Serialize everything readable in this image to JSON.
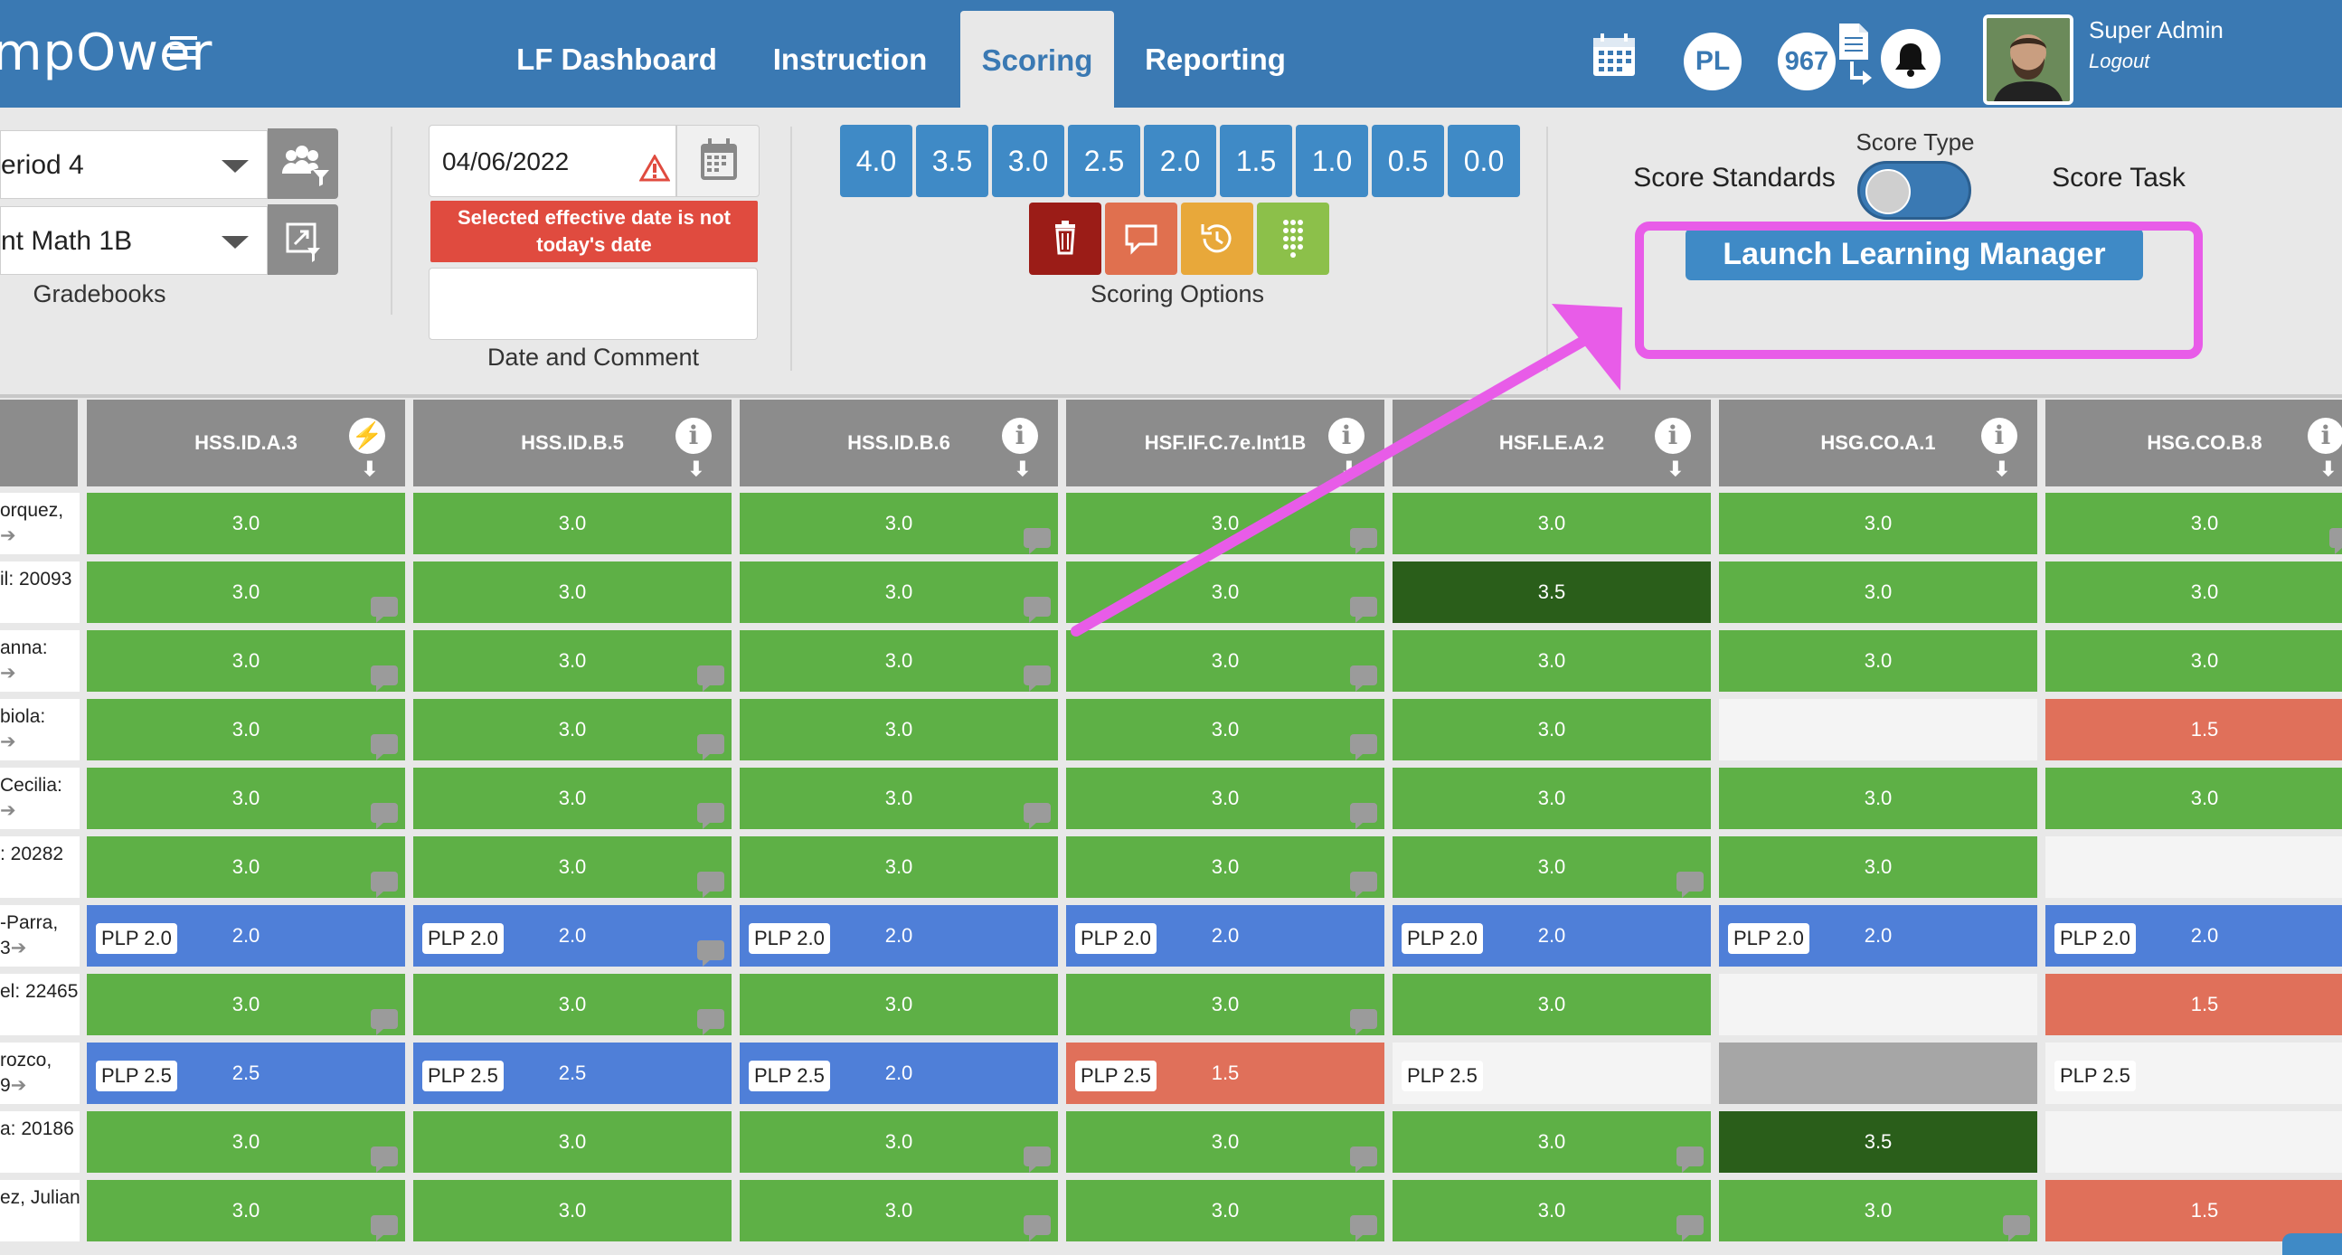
{
  "header": {
    "logo": "mpOwer",
    "nav": [
      "LF Dashboard",
      "Instruction",
      "Scoring",
      "Reporting"
    ],
    "pl_badge": "PL",
    "count_badge": "967",
    "user_name": "Super Admin",
    "logout": "Logout"
  },
  "toolbar": {
    "period": "eriod 4",
    "gradebook": "nt Math 1B",
    "gradebooks_label": "Gradebooks",
    "date": "04/06/2022",
    "date_warning": "Selected effective date is not today's date",
    "comment_placeholder": "",
    "date_comment_label": "Date and Comment",
    "scores": [
      "4.0",
      "3.5",
      "3.0",
      "2.5",
      "2.0",
      "1.5",
      "1.0",
      "0.5",
      "0.0"
    ],
    "scoring_options_label": "Scoring Options",
    "score_type_label": "Score Type",
    "score_standards": "Score Standards",
    "score_task": "Score Task",
    "launch": "Launch Learning Manager"
  },
  "colors": {
    "brand": "#3a79b3",
    "green": "#5eb046",
    "dark_green": "#2a5e1a",
    "blue": "#4f7fd8",
    "red": "#e0705a",
    "highlight": "#e85ce8"
  },
  "table": {
    "columns": [
      "HSS.ID.A.3",
      "HSS.ID.B.5",
      "HSS.ID.B.6",
      "HSF.IF.C.7e.Int1B",
      "HSF.LE.A.2",
      "HSG.CO.A.1",
      "HSG.CO.B.8"
    ],
    "column_icons": [
      "lightning-icon",
      "info-icon",
      "info-icon",
      "info-icon",
      "info-icon",
      "info-icon",
      "info-icon"
    ],
    "rows": [
      {
        "name": [
          "orquez,",
          ""
        ],
        "arrow": true,
        "cells": [
          [
            "3.0",
            "g",
            "",
            false
          ],
          [
            "3.0",
            "g",
            "",
            false
          ],
          [
            "3.0",
            "g",
            "",
            true
          ],
          [
            "3.0",
            "g",
            "",
            true
          ],
          [
            "3.0",
            "g",
            "",
            false
          ],
          [
            "3.0",
            "g",
            "",
            false
          ],
          [
            "3.0",
            "g",
            "",
            true
          ]
        ]
      },
      {
        "name": [
          "il: 20093",
          ""
        ],
        "arrow": false,
        "cells": [
          [
            "3.0",
            "g",
            "",
            true
          ],
          [
            "3.0",
            "g",
            "",
            false
          ],
          [
            "3.0",
            "g",
            "",
            true
          ],
          [
            "3.0",
            "g",
            "",
            true
          ],
          [
            "3.5",
            "dg",
            "",
            false
          ],
          [
            "3.0",
            "g",
            "",
            false
          ],
          [
            "3.0",
            "g",
            "",
            false
          ]
        ]
      },
      {
        "name": [
          "anna:",
          ""
        ],
        "arrow": true,
        "cells": [
          [
            "3.0",
            "g",
            "",
            true
          ],
          [
            "3.0",
            "g",
            "",
            true
          ],
          [
            "3.0",
            "g",
            "",
            true
          ],
          [
            "3.0",
            "g",
            "",
            true
          ],
          [
            "3.0",
            "g",
            "",
            false
          ],
          [
            "3.0",
            "g",
            "",
            false
          ],
          [
            "3.0",
            "g",
            "",
            false
          ]
        ]
      },
      {
        "name": [
          "biola:",
          ""
        ],
        "arrow": true,
        "cells": [
          [
            "3.0",
            "g",
            "",
            true
          ],
          [
            "3.0",
            "g",
            "",
            true
          ],
          [
            "3.0",
            "g",
            "",
            false
          ],
          [
            "3.0",
            "g",
            "",
            true
          ],
          [
            "3.0",
            "g",
            "",
            false
          ],
          [
            "",
            "w",
            "",
            false
          ],
          [
            "1.5",
            "r",
            "",
            false
          ]
        ]
      },
      {
        "name": [
          "Cecilia:",
          ""
        ],
        "arrow": true,
        "cells": [
          [
            "3.0",
            "g",
            "",
            true
          ],
          [
            "3.0",
            "g",
            "",
            true
          ],
          [
            "3.0",
            "g",
            "",
            true
          ],
          [
            "3.0",
            "g",
            "",
            true
          ],
          [
            "3.0",
            "g",
            "",
            false
          ],
          [
            "3.0",
            "g",
            "",
            false
          ],
          [
            "3.0",
            "g",
            "",
            false
          ]
        ]
      },
      {
        "name": [
          ": 20282",
          ""
        ],
        "arrow": false,
        "cells": [
          [
            "3.0",
            "g",
            "",
            true
          ],
          [
            "3.0",
            "g",
            "",
            true
          ],
          [
            "3.0",
            "g",
            "",
            false
          ],
          [
            "3.0",
            "g",
            "",
            true
          ],
          [
            "3.0",
            "g",
            "",
            true
          ],
          [
            "3.0",
            "g",
            "",
            false
          ],
          [
            "",
            "w",
            "",
            false
          ]
        ]
      },
      {
        "name": [
          "-Parra,",
          "3"
        ],
        "arrow": true,
        "cells": [
          [
            "2.0",
            "b",
            "PLP 2.0",
            false
          ],
          [
            "2.0",
            "b",
            "PLP 2.0",
            true
          ],
          [
            "2.0",
            "b",
            "PLP 2.0",
            false
          ],
          [
            "2.0",
            "b",
            "PLP 2.0",
            false
          ],
          [
            "2.0",
            "b",
            "PLP 2.0",
            false
          ],
          [
            "2.0",
            "b",
            "PLP 2.0",
            false
          ],
          [
            "2.0",
            "b",
            "PLP 2.0",
            false
          ]
        ]
      },
      {
        "name": [
          "el: 22465",
          ""
        ],
        "arrow": false,
        "cells": [
          [
            "3.0",
            "g",
            "",
            true
          ],
          [
            "3.0",
            "g",
            "",
            true
          ],
          [
            "3.0",
            "g",
            "",
            false
          ],
          [
            "3.0",
            "g",
            "",
            true
          ],
          [
            "3.0",
            "g",
            "",
            false
          ],
          [
            "",
            "w",
            "",
            false
          ],
          [
            "1.5",
            "r",
            "",
            false
          ]
        ]
      },
      {
        "name": [
          "rozco,",
          "9"
        ],
        "arrow": true,
        "cells": [
          [
            "2.5",
            "b",
            "PLP 2.5",
            false
          ],
          [
            "2.5",
            "b",
            "PLP 2.5",
            false
          ],
          [
            "2.0",
            "b",
            "PLP 2.5",
            false
          ],
          [
            "1.5",
            "r",
            "PLP 2.5",
            false
          ],
          [
            "",
            "w",
            "PLP 2.5",
            false
          ],
          [
            "",
            "gr",
            "",
            false
          ],
          [
            "",
            "w",
            "PLP 2.5",
            false
          ]
        ]
      },
      {
        "name": [
          "a: 20186",
          ""
        ],
        "arrow": false,
        "cells": [
          [
            "3.0",
            "g",
            "",
            true
          ],
          [
            "3.0",
            "g",
            "",
            false
          ],
          [
            "3.0",
            "g",
            "",
            true
          ],
          [
            "3.0",
            "g",
            "",
            true
          ],
          [
            "3.0",
            "g",
            "",
            true
          ],
          [
            "3.5",
            "dg",
            "",
            false
          ],
          [
            "",
            "w",
            "",
            false
          ]
        ]
      },
      {
        "name": [
          "ez, Julian:",
          ""
        ],
        "arrow": false,
        "cells": [
          [
            "3.0",
            "g",
            "",
            true
          ],
          [
            "3.0",
            "g",
            "",
            false
          ],
          [
            "3.0",
            "g",
            "",
            true
          ],
          [
            "3.0",
            "g",
            "",
            true
          ],
          [
            "3.0",
            "g",
            "",
            true
          ],
          [
            "3.0",
            "g",
            "",
            true
          ],
          [
            "1.5",
            "r",
            "",
            false
          ]
        ]
      }
    ]
  }
}
